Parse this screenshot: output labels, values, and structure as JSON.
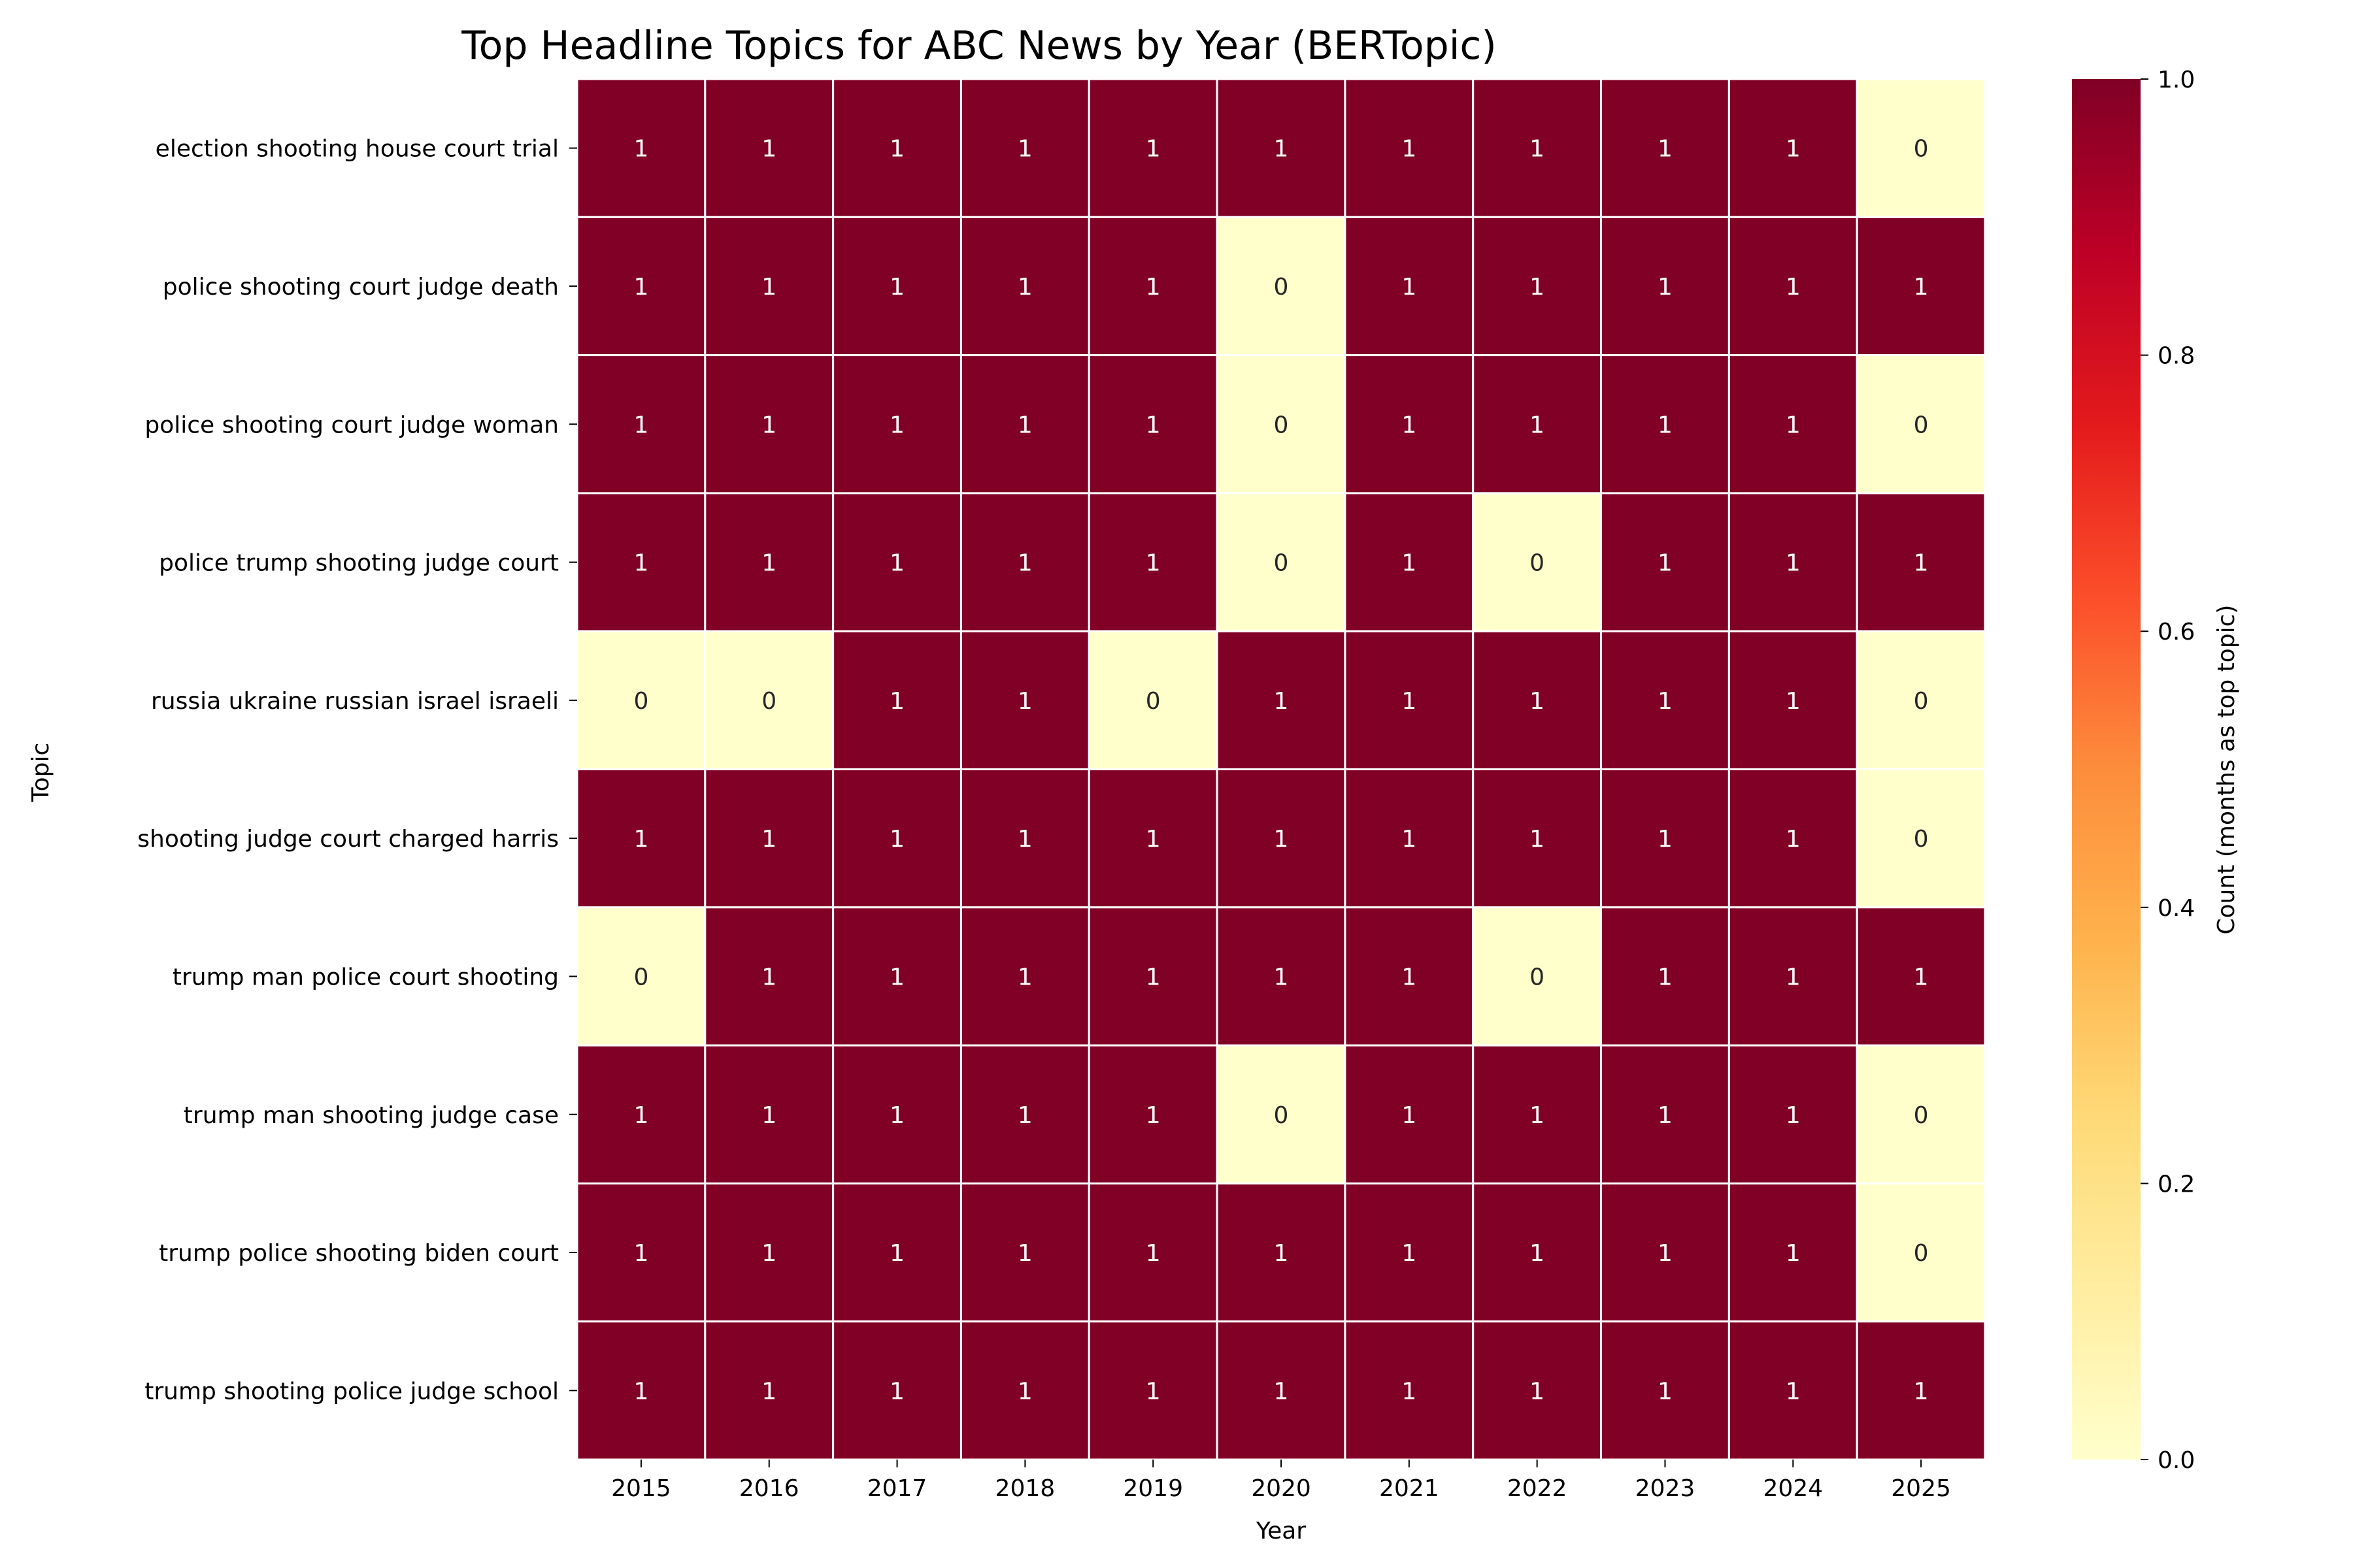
{
  "chart_data": {
    "type": "heatmap",
    "title": "Top Headline Topics for ABC News by Year (BERTopic)",
    "xlabel": "Year",
    "ylabel": "Topic",
    "colorbar_label": "Count (months as top topic)",
    "colorbar_ticks": [
      "0.0",
      "0.2",
      "0.4",
      "0.6",
      "0.8",
      "1.0"
    ],
    "colormap": "YlOrRd",
    "vmin": 0,
    "vmax": 1,
    "low_color": "#ffffcc",
    "high_color": "#800026",
    "x": [
      "2015",
      "2016",
      "2017",
      "2018",
      "2019",
      "2020",
      "2021",
      "2022",
      "2023",
      "2024",
      "2025"
    ],
    "y": [
      "election shooting house court trial",
      "police shooting court judge death",
      "police shooting court judge woman",
      "police trump shooting judge court",
      "russia ukraine russian israel israeli",
      "shooting judge court charged harris",
      "trump man police court shooting",
      "trump man shooting judge case",
      "trump police shooting biden court",
      "trump shooting police judge school"
    ],
    "values": [
      [
        1,
        1,
        1,
        1,
        1,
        1,
        1,
        1,
        1,
        1,
        0
      ],
      [
        1,
        1,
        1,
        1,
        1,
        0,
        1,
        1,
        1,
        1,
        1
      ],
      [
        1,
        1,
        1,
        1,
        1,
        0,
        1,
        1,
        1,
        1,
        0
      ],
      [
        1,
        1,
        1,
        1,
        1,
        0,
        1,
        0,
        1,
        1,
        1
      ],
      [
        0,
        0,
        1,
        1,
        0,
        1,
        1,
        1,
        1,
        1,
        0
      ],
      [
        1,
        1,
        1,
        1,
        1,
        1,
        1,
        1,
        1,
        1,
        0
      ],
      [
        0,
        1,
        1,
        1,
        1,
        1,
        1,
        0,
        1,
        1,
        1
      ],
      [
        1,
        1,
        1,
        1,
        1,
        0,
        1,
        1,
        1,
        1,
        0
      ],
      [
        1,
        1,
        1,
        1,
        1,
        1,
        1,
        1,
        1,
        1,
        0
      ],
      [
        1,
        1,
        1,
        1,
        1,
        1,
        1,
        1,
        1,
        1,
        1
      ]
    ],
    "annotations": true,
    "legend": "colorbar-right"
  }
}
